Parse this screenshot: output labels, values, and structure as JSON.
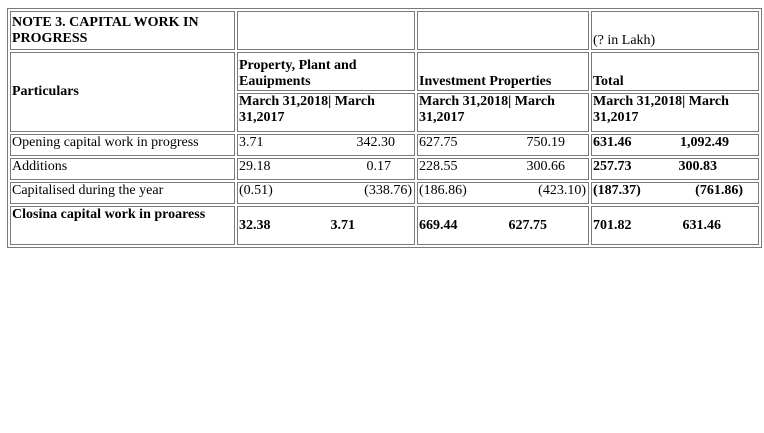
{
  "note": {
    "title": "NOTE 3. CAPITAL WORK IN PROGRESS",
    "unit": "(? in Lakh)",
    "particulars_label": "Particulars",
    "groups": [
      {
        "name": "Property, Plant and Eauipments",
        "period": "March 31,2018| March 31,2017"
      },
      {
        "name": "Investment Properties",
        "period": "March 31,2018| March 31,2017"
      },
      {
        "name": "Total",
        "period": "March 31,2018| March 31,2017"
      }
    ],
    "rows": [
      {
        "label": "Opening capital work in progress",
        "ppe_2018": "3.71",
        "ppe_2017": "342.30",
        "inv_2018": "627.75",
        "inv_2017": "750.19",
        "tot_2018": "631.46",
        "tot_2017": "1,092.49"
      },
      {
        "label": "Additions",
        "ppe_2018": "29.18",
        "ppe_2017": "0.17",
        "inv_2018": "228.55",
        "inv_2017": "300.66",
        "tot_2018": "257.73",
        "tot_2017": "300.83"
      },
      {
        "label": "Capitalised during the year",
        "ppe_2018": "(0.51)",
        "ppe_2017": "(338.76)",
        "inv_2018": "(186.86)",
        "inv_2017": "(423.10)",
        "tot_2018": "(187.37)",
        "tot_2017": "(761.86)"
      },
      {
        "label": "Closina capital work in proaress",
        "ppe_2018": "32.38",
        "ppe_2017": "3.71",
        "inv_2018": "669.44",
        "inv_2017": "627.75",
        "tot_2018": "701.82",
        "tot_2017": "631.46"
      }
    ]
  }
}
